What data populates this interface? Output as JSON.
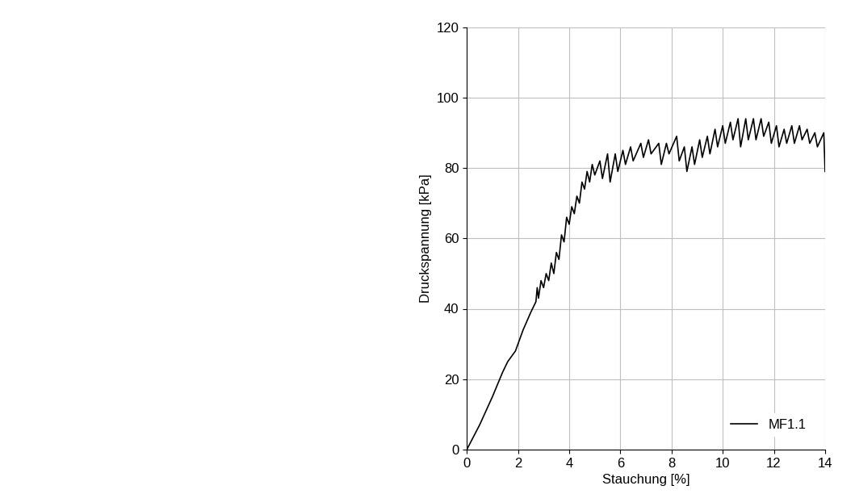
{
  "chart_data": {
    "type": "line",
    "x_label": "Stauchung [%]",
    "y_label": "Druckspannung [kPa]",
    "xlim": [
      0,
      14
    ],
    "xticks": [
      0,
      2,
      4,
      6,
      8,
      10,
      12,
      14
    ],
    "ylim": [
      0,
      120
    ],
    "yticks": [
      0,
      20,
      40,
      60,
      80,
      100,
      120
    ],
    "grid": true,
    "legend": "lower right",
    "series": [
      {
        "name": "MF1.1",
        "color": "#000000",
        "line_style": "solid",
        "x": [
          0,
          0.5,
          1.0,
          1.4,
          1.6,
          1.9,
          2.2,
          2.5,
          2.7,
          2.75,
          2.8,
          2.9,
          3.0,
          3.1,
          3.2,
          3.3,
          3.4,
          3.5,
          3.6,
          3.7,
          3.8,
          3.9,
          4.0,
          4.1,
          4.2,
          4.3,
          4.4,
          4.5,
          4.6,
          4.7,
          4.8,
          4.9,
          5.0,
          5.2,
          5.3,
          5.5,
          5.6,
          5.8,
          5.9,
          6.1,
          6.2,
          6.4,
          6.5,
          6.8,
          6.9,
          7.1,
          7.2,
          7.5,
          7.6,
          7.8,
          7.9,
          8.2,
          8.3,
          8.5,
          8.6,
          8.8,
          8.9,
          9.1,
          9.2,
          9.4,
          9.5,
          9.7,
          9.8,
          10.0,
          10.1,
          10.3,
          10.4,
          10.6,
          10.7,
          10.9,
          11.0,
          11.2,
          11.3,
          11.5,
          11.6,
          11.8,
          11.9,
          12.1,
          12.2,
          12.4,
          12.5,
          12.7,
          12.8,
          13.0,
          13.1,
          13.3,
          13.4,
          13.6,
          13.7,
          13.95,
          14.0
        ],
        "values": [
          0,
          7,
          15,
          22,
          25,
          28,
          34,
          39,
          42,
          46,
          43,
          48,
          46,
          50,
          48,
          53,
          50,
          56,
          54,
          61,
          59,
          66,
          64,
          69,
          67,
          72,
          70,
          76,
          74,
          79,
          76,
          81,
          78,
          82,
          77,
          84,
          76,
          84,
          79,
          85,
          81,
          86,
          82,
          87,
          83,
          88,
          84,
          87,
          81,
          87,
          84,
          89,
          82,
          86,
          79,
          86,
          81,
          88,
          83,
          89,
          84,
          91,
          86,
          92,
          87,
          93,
          88,
          94,
          86,
          94,
          88,
          94,
          88,
          94,
          89,
          93,
          87,
          92,
          86,
          91,
          87,
          92,
          87,
          92,
          88,
          91,
          87,
          90,
          86,
          90,
          79
        ]
      }
    ]
  }
}
